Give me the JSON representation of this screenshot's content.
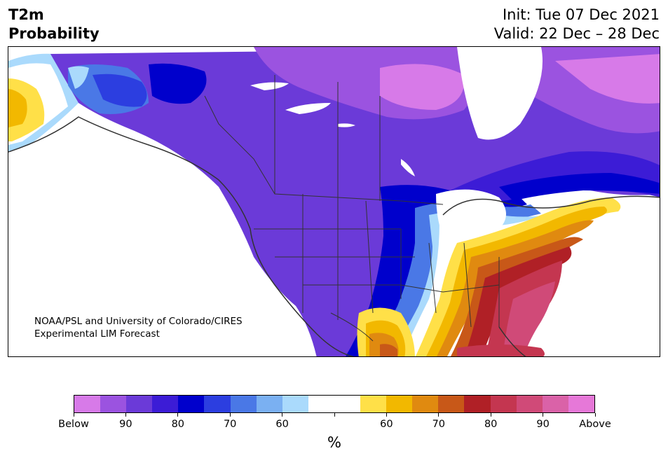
{
  "header": {
    "title_line1": "T2m",
    "title_line2": "Probability",
    "init_text": "Init: Tue 07 Dec 2021",
    "valid_text": "Valid: 22 Dec – 28 Dec"
  },
  "map": {
    "credit_line1": "NOAA/PSL and University of Colorado/CIRES",
    "credit_line2": "Experimental LIM Forecast"
  },
  "colorbar": {
    "title": "%",
    "colors": [
      "#d77ae8",
      "#9b53e0",
      "#6b3ad8",
      "#3c1cd6",
      "#0000cc",
      "#2c3ee0",
      "#4a78e6",
      "#7ab0f2",
      "#aadafc",
      "#ffffff",
      "#ffffff",
      "#ffe048",
      "#f2b800",
      "#e08a10",
      "#c85818",
      "#b02026",
      "#c43650",
      "#d04a78",
      "#da62a8",
      "#e678d8"
    ],
    "tick_labels": [
      "Below",
      "90",
      "80",
      "70",
      "60",
      "",
      "60",
      "70",
      "80",
      "90",
      "Above"
    ]
  }
}
